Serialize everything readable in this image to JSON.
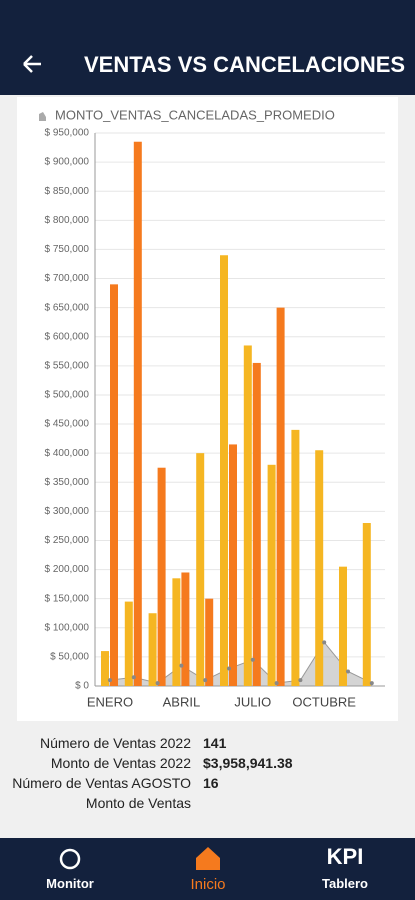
{
  "header": {
    "title": "VENTAS VS CANCELACIONES"
  },
  "chart_data": {
    "type": "bar",
    "legend": "MONTO_VENTAS_CANCELADAS_PROMEDIO",
    "categories": [
      "ENERO",
      null,
      null,
      "ABRIL",
      null,
      null,
      "JULIO",
      null,
      null,
      "OCTUBRE",
      null,
      null
    ],
    "series": [
      {
        "color": "#f5b622",
        "values": [
          60000,
          145000,
          125000,
          185000,
          400000,
          740000,
          585000,
          380000,
          440000,
          405000,
          205000,
          280000
        ]
      },
      {
        "color": "#f57a1e",
        "values": [
          690000,
          935000,
          375000,
          195000,
          150000,
          415000,
          555000,
          650000,
          null,
          null,
          null,
          null
        ]
      },
      {
        "name": "MONTO_VENTAS_CANCELADAS_PROMEDIO",
        "type": "area",
        "color": "#b8b8b8",
        "values": [
          10000,
          15000,
          5000,
          35000,
          10000,
          30000,
          45000,
          5000,
          10000,
          75000,
          25000,
          5000
        ]
      }
    ],
    "ylim": [
      0,
      950000
    ],
    "yticks": [
      {
        "value": 0,
        "label": "$ 0"
      },
      {
        "value": 50000,
        "label": "$ 50,000"
      },
      {
        "value": 100000,
        "label": "$ 100,000"
      },
      {
        "value": 150000,
        "label": "$ 150,000"
      },
      {
        "value": 200000,
        "label": "$ 200,000"
      },
      {
        "value": 250000,
        "label": "$ 250,000"
      },
      {
        "value": 300000,
        "label": "$ 300,000"
      },
      {
        "value": 350000,
        "label": "$ 350,000"
      },
      {
        "value": 400000,
        "label": "$ 400,000"
      },
      {
        "value": 450000,
        "label": "$ 450,000"
      },
      {
        "value": 500000,
        "label": "$ 500,000"
      },
      {
        "value": 550000,
        "label": "$ 550,000"
      },
      {
        "value": 600000,
        "label": "$ 600,000"
      },
      {
        "value": 650000,
        "label": "$ 650,000"
      },
      {
        "value": 700000,
        "label": "$ 700,000"
      },
      {
        "value": 750000,
        "label": "$ 750,000"
      },
      {
        "value": 800000,
        "label": "$ 800,000"
      },
      {
        "value": 850000,
        "label": "$ 850,000"
      },
      {
        "value": 900000,
        "label": "$ 900,000"
      },
      {
        "value": 950000,
        "label": "$ 950,000"
      }
    ],
    "grid": true
  },
  "summary": [
    {
      "label": "Número de Ventas 2022",
      "value": "141"
    },
    {
      "label": "Monto de Ventas 2022",
      "value": "$3,958,941.38"
    },
    {
      "label": "Número de Ventas AGOSTO",
      "value": "16"
    },
    {
      "label": "Monto de Ventas"
    }
  ],
  "nav": [
    {
      "label": "Monitor"
    },
    {
      "label": "Inicio"
    },
    {
      "label": "KPI"
    },
    {
      "label": "Tablero"
    }
  ]
}
